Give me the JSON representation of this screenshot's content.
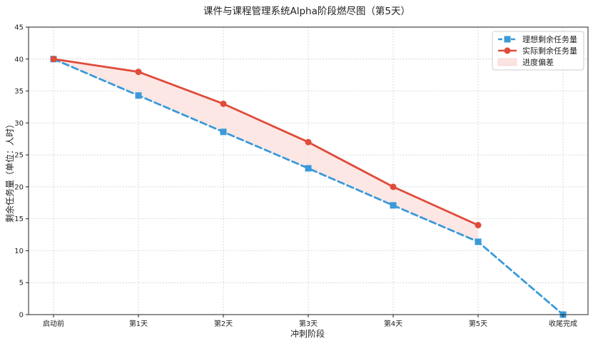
{
  "chart_data": {
    "type": "line",
    "title": "课件与课程管理系统Alpha阶段燃尽图（第5天）",
    "xlabel": "冲刺阶段",
    "ylabel": "剩余任务量（单位：人时）",
    "categories": [
      "启动前",
      "第1天",
      "第2天",
      "第3天",
      "第4天",
      "第5天",
      "收尾完成"
    ],
    "ylim": [
      0,
      45
    ],
    "yticks": [
      0,
      5,
      10,
      15,
      20,
      25,
      30,
      35,
      40,
      45
    ],
    "grid": true,
    "legend_position": "top-right",
    "series": [
      {
        "name": "理想剩余任务量",
        "values": [
          40,
          34.3,
          28.6,
          22.9,
          17.1,
          11.4,
          0
        ],
        "color": "#3a9ad9",
        "style": "dashed",
        "marker": "square"
      },
      {
        "name": "实际剩余任务量",
        "values": [
          40,
          38,
          33,
          27,
          20,
          14,
          null
        ],
        "color": "#e04b3a",
        "style": "solid",
        "marker": "circle"
      }
    ],
    "fill_between": {
      "name": "进度偏差",
      "color": "#fbe3e0",
      "between": [
        "理想剩余任务量",
        "实际剩余任务量"
      ]
    }
  }
}
